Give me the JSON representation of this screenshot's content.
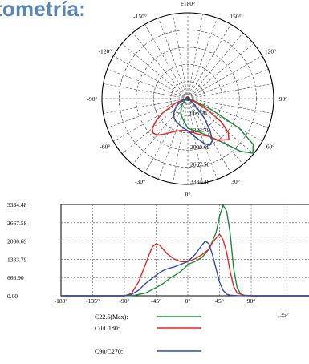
{
  "heading": "tometría:",
  "chart_data": [
    {
      "type": "polar",
      "angle_labels": [
        "±180°",
        "150°",
        "120°",
        "90°",
        "60°",
        "30°",
        "0°",
        "-30°",
        "-60°",
        "-90°",
        "-120°",
        "-150°"
      ],
      "radial_labels": [
        "666.90",
        "1333.79",
        "2000.69",
        "2667.58",
        "3334.48"
      ],
      "rmax": 3334.48,
      "series": [
        {
          "name": "C22.5(Max):",
          "color": "#1e8a3a",
          "angles": [
            -90,
            -75,
            -60,
            -45,
            -35,
            -25,
            -15,
            -5,
            0,
            10,
            20,
            30,
            40,
            45,
            50,
            55,
            60,
            65,
            70,
            75,
            80,
            90
          ],
          "values": [
            0,
            20,
            100,
            300,
            450,
            650,
            800,
            1000,
            1150,
            1250,
            1400,
            1700,
            2300,
            2900,
            3300,
            3100,
            2300,
            1000,
            300,
            60,
            10,
            0
          ]
        },
        {
          "name": "C0/C180:",
          "color": "#e8251f",
          "angles": [
            -90,
            -80,
            -70,
            -60,
            -55,
            -50,
            -45,
            -40,
            -35,
            -30,
            -20,
            -10,
            0,
            10,
            20,
            30,
            35,
            40,
            45,
            50,
            55,
            60,
            65,
            70,
            80,
            90
          ],
          "values": [
            0,
            80,
            500,
            1150,
            1500,
            1800,
            1900,
            1850,
            1700,
            1550,
            1350,
            1250,
            1250,
            1350,
            1500,
            1700,
            1950,
            2100,
            2250,
            2050,
            1600,
            900,
            350,
            100,
            20,
            0
          ]
        },
        {
          "name": "C90/C270:",
          "color": "#2b4fa8",
          "angles": [
            -90,
            -80,
            -70,
            -60,
            -50,
            -45,
            -40,
            -35,
            -30,
            -20,
            -10,
            0,
            10,
            20,
            25,
            30,
            35,
            40,
            45,
            50,
            55,
            60,
            70,
            90
          ],
          "values": [
            0,
            50,
            200,
            450,
            650,
            750,
            850,
            920,
            980,
            1050,
            1150,
            1250,
            1500,
            1850,
            2000,
            1900,
            1500,
            1000,
            500,
            200,
            60,
            20,
            5,
            0
          ]
        }
      ]
    },
    {
      "type": "line",
      "x_tick_labels": [
        "-180°",
        "-135°",
        "-90°",
        "-45°",
        "0°",
        "45°",
        "90°",
        "135°"
      ],
      "x_ticks": [
        -180,
        -135,
        -90,
        -45,
        0,
        45,
        90,
        135
      ],
      "y_tick_labels": [
        "3334.48",
        "2667.58",
        "2000.69",
        "1333.79",
        "666.90",
        "0.00"
      ],
      "y_ticks": [
        3334.48,
        2667.58,
        2000.69,
        1333.79,
        666.9,
        0
      ],
      "xlim": [
        -180,
        180
      ],
      "ylim": [
        0,
        3334.48
      ],
      "series": [
        {
          "name": "C22.5(Max):",
          "color": "#1e8a3a",
          "x": [
            -180,
            -90,
            -75,
            -60,
            -45,
            -35,
            -25,
            -15,
            -5,
            0,
            10,
            20,
            30,
            40,
            45,
            50,
            55,
            60,
            65,
            70,
            75,
            80,
            90,
            180
          ],
          "y": [
            0,
            0,
            20,
            100,
            300,
            450,
            650,
            800,
            1000,
            1150,
            1250,
            1400,
            1700,
            2300,
            2900,
            3300,
            3100,
            2300,
            1000,
            300,
            60,
            10,
            0,
            0
          ]
        },
        {
          "name": "C0/C180:",
          "color": "#e8251f",
          "x": [
            -180,
            -90,
            -80,
            -70,
            -60,
            -55,
            -50,
            -45,
            -40,
            -35,
            -30,
            -20,
            -10,
            0,
            10,
            20,
            30,
            35,
            40,
            45,
            50,
            55,
            60,
            65,
            70,
            80,
            90,
            180
          ],
          "y": [
            0,
            0,
            80,
            500,
            1150,
            1500,
            1800,
            1900,
            1850,
            1700,
            1550,
            1350,
            1250,
            1250,
            1350,
            1500,
            1700,
            1950,
            2100,
            2250,
            2050,
            1600,
            900,
            350,
            100,
            20,
            0,
            0
          ]
        },
        {
          "name": "C90/C270:",
          "color": "#2b4fa8",
          "x": [
            -180,
            -90,
            -80,
            -70,
            -60,
            -50,
            -45,
            -40,
            -35,
            -30,
            -20,
            -10,
            0,
            10,
            20,
            25,
            30,
            35,
            40,
            45,
            50,
            55,
            60,
            70,
            90,
            180
          ],
          "y": [
            0,
            0,
            50,
            200,
            450,
            650,
            750,
            850,
            920,
            980,
            1050,
            1150,
            1250,
            1500,
            1850,
            2000,
            1900,
            1500,
            1000,
            500,
            200,
            60,
            20,
            5,
            0,
            0
          ]
        }
      ]
    }
  ],
  "legend": [
    {
      "label": "C22.5(Max):",
      "color": "#1e8a3a"
    },
    {
      "label": "C0/C180:",
      "color": "#e8251f"
    },
    {
      "label": "C90/C270:",
      "color": "#2b4fa8"
    }
  ]
}
